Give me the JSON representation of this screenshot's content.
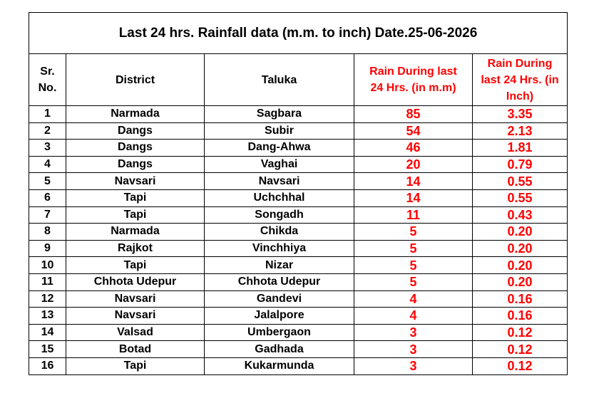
{
  "title": "Last 24 hrs. Rainfall data (m.m. to inch) Date.25-06-2026",
  "table": {
    "headers": [
      "Sr. No.",
      "District",
      "Taluka",
      "Rain During last 24 Hrs. (in m.m)",
      "Rain During last 24 Hrs. (in Inch)"
    ],
    "rows": [
      [
        "1",
        "Narmada",
        "Sagbara",
        "85",
        "3.35"
      ],
      [
        "2",
        "Dangs",
        "Subir",
        "54",
        "2.13"
      ],
      [
        "3",
        "Dangs",
        "Dang-Ahwa",
        "46",
        "1.81"
      ],
      [
        "4",
        "Dangs",
        "Vaghai",
        "20",
        "0.79"
      ],
      [
        "5",
        "Navsari",
        "Navsari",
        "14",
        "0.55"
      ],
      [
        "6",
        "Tapi",
        "Uchchhal",
        "14",
        "0.55"
      ],
      [
        "7",
        "Tapi",
        "Songadh",
        "11",
        "0.43"
      ],
      [
        "8",
        "Narmada",
        "Chikda",
        "5",
        "0.20"
      ],
      [
        "9",
        "Rajkot",
        "Vinchhiya",
        "5",
        "0.20"
      ],
      [
        "10",
        "Tapi",
        "Nizar",
        "5",
        "0.20"
      ],
      [
        "11",
        "Chhota Udepur",
        "Chhota Udepur",
        "5",
        "0.20"
      ],
      [
        "12",
        "Navsari",
        "Gandevi",
        "4",
        "0.16"
      ],
      [
        "13",
        "Navsari",
        "Jalalpore",
        "4",
        "0.16"
      ],
      [
        "14",
        "Valsad",
        "Umbergaon",
        "3",
        "0.12"
      ],
      [
        "15",
        "Botad",
        "Gadhada",
        "3",
        "0.12"
      ],
      [
        "16",
        "Tapi",
        "Kukarmunda",
        "3",
        "0.12"
      ]
    ]
  }
}
